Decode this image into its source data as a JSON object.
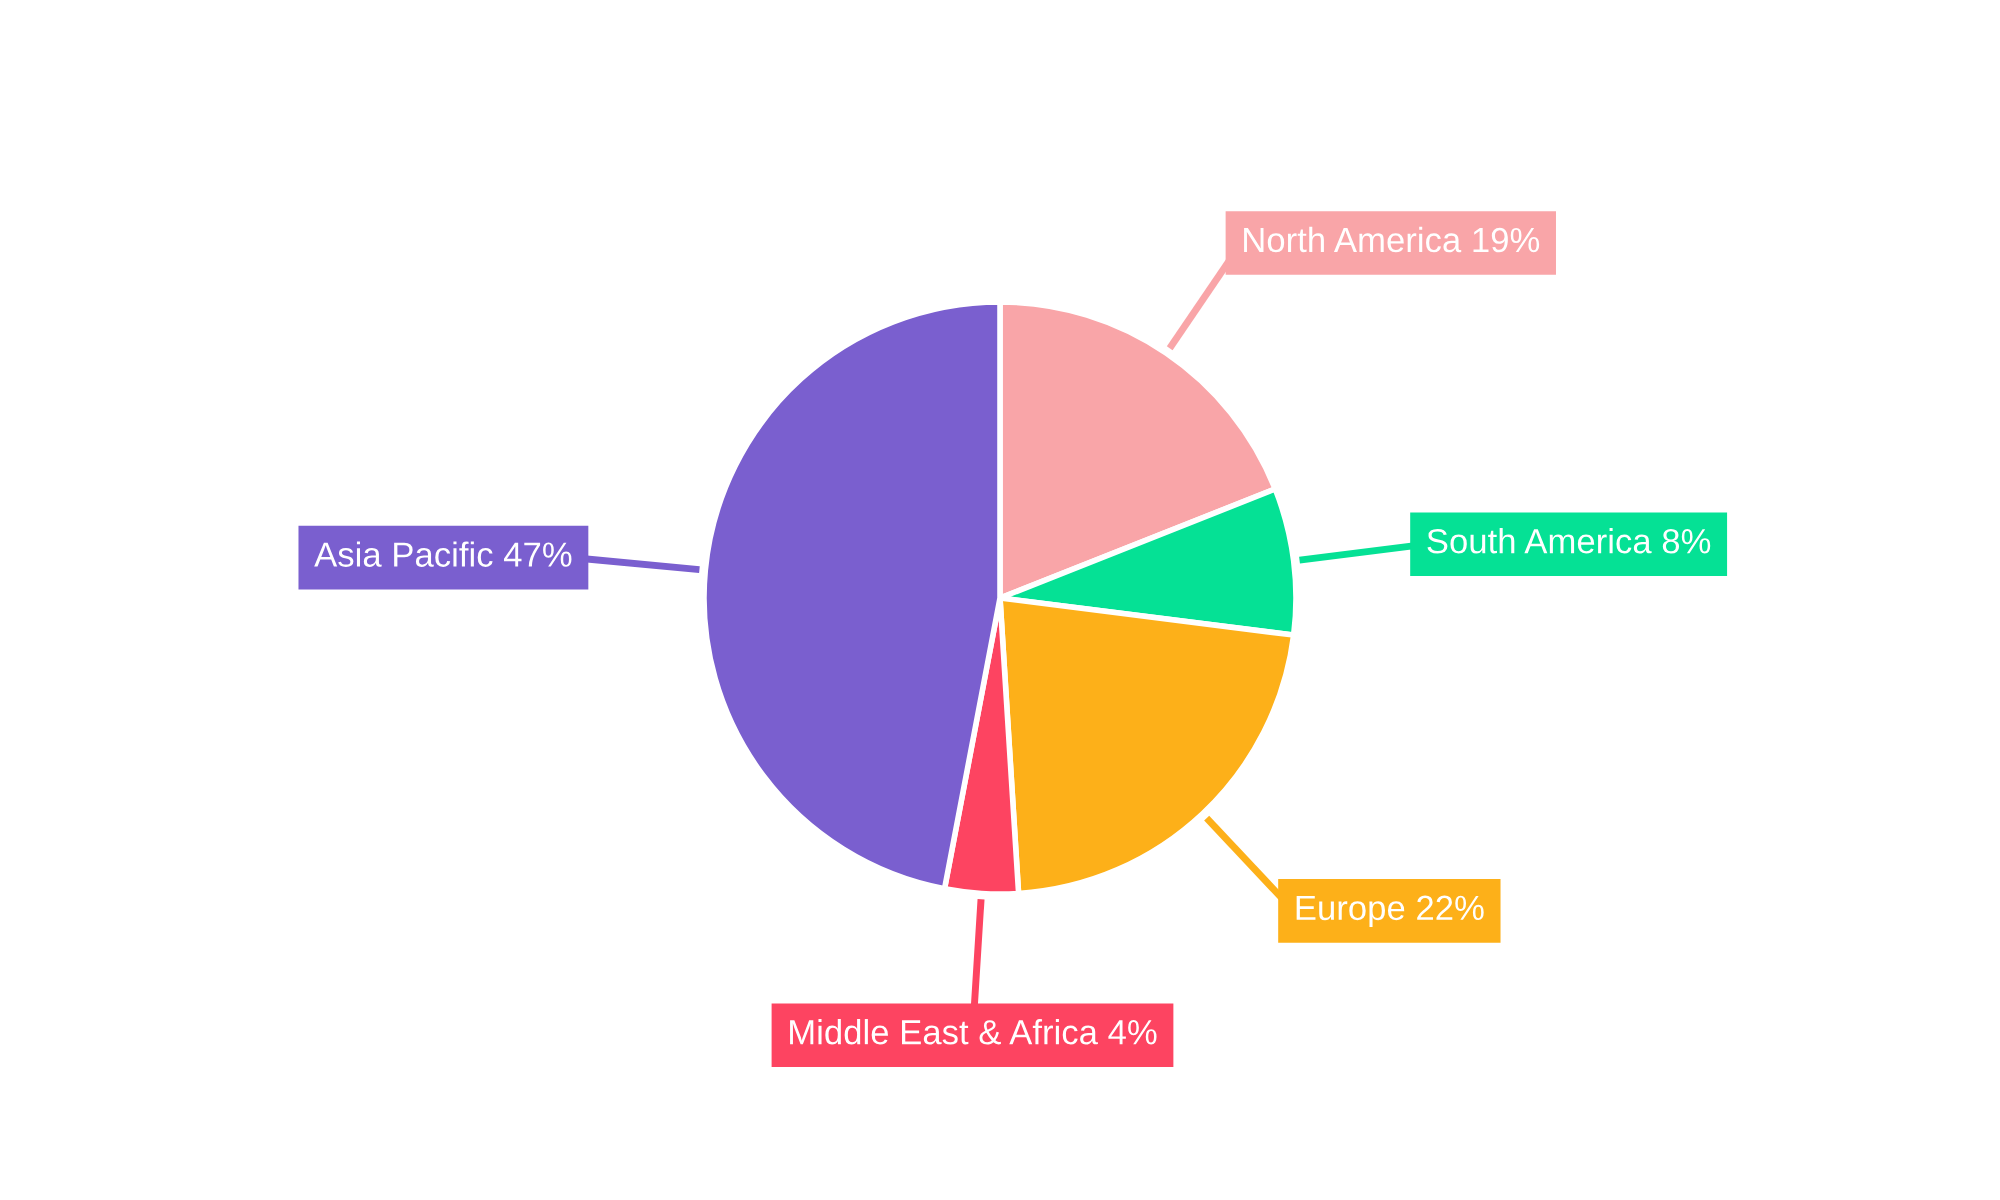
{
  "chart_data": {
    "type": "pie",
    "categories": [
      "North America",
      "South America",
      "Europe",
      "Middle East & Africa",
      "Asia Pacific"
    ],
    "values": [
      19,
      8,
      22,
      4,
      47
    ],
    "value_labels": [
      "19%",
      "8%",
      "22%",
      "4%",
      "47%"
    ],
    "colors": [
      "#f9a5a8",
      "#05e195",
      "#fdb019",
      "#fd4461",
      "#7a5fcf"
    ],
    "legend": false
  }
}
